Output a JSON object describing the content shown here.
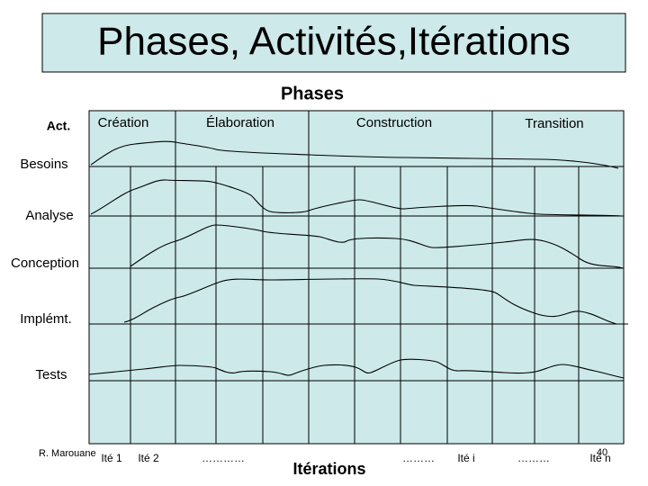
{
  "header": {
    "title": "Phases, Activités,Itérations"
  },
  "diagram": {
    "phases_title": "Phases",
    "activities_title": "Act.",
    "phases": [
      "Création",
      "Élaboration",
      "Construction",
      "Transition"
    ],
    "activities": [
      "Besoins",
      "Analyse",
      "Conception",
      "Implémt.",
      "Tests"
    ],
    "iterations": [
      "Ité 1",
      "Ité 2",
      "…………",
      "………",
      "Ité i",
      "………",
      "Ité n"
    ],
    "iterations_title": "Itérations"
  },
  "footer": {
    "author": "R. Marouane",
    "page": "40"
  }
}
